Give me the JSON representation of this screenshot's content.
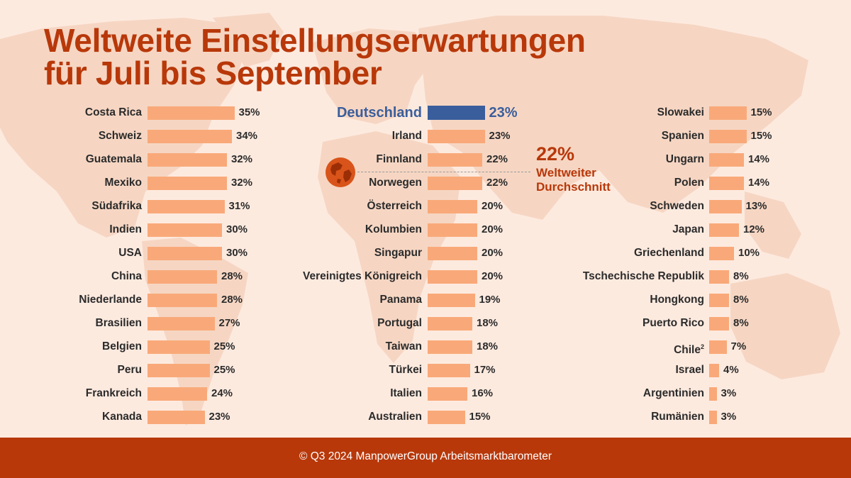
{
  "title_line1": "Weltweite Einstellungserwartungen",
  "title_line2": "für Juli bis September",
  "average": {
    "value_label": "22%",
    "value": 22,
    "label_line1": "Weltweiter",
    "label_line2": "Durchschnitt"
  },
  "footer": "© Q3 2024 ManpowerGroup Arbeitsmarktbarometer",
  "colors": {
    "bar": "#f9a979",
    "highlight": "#3a5e9c",
    "accent": "#b8380a",
    "background": "#fdeadf"
  },
  "icons": {
    "average_marker": "globe-icon"
  },
  "chart_data": {
    "type": "bar",
    "orientation": "horizontal",
    "unit": "%",
    "highlight": {
      "category": "Deutschland",
      "value": 23,
      "label": "23%"
    },
    "columns": [
      {
        "categories": [
          "Costa Rica",
          "Schweiz",
          "Guatemala",
          "Mexiko",
          "Südafrika",
          "Indien",
          "USA",
          "China",
          "Niederlande",
          "Brasilien",
          "Belgien",
          "Peru",
          "Frankreich",
          "Kanada"
        ],
        "values": [
          35,
          34,
          32,
          32,
          31,
          30,
          30,
          28,
          28,
          27,
          25,
          25,
          24,
          23
        ],
        "value_labels": [
          "35%",
          "34%",
          "32%",
          "32%",
          "31%",
          "30%",
          "30%",
          "28%",
          "28%",
          "27%",
          "25%",
          "25%",
          "24%",
          "23%"
        ]
      },
      {
        "categories": [
          "Irland",
          "Finnland",
          "Norwegen",
          "Österreich",
          "Kolumbien",
          "Singapur",
          "Vereinigtes Königreich",
          "Panama",
          "Portugal",
          "Taiwan",
          "Türkei",
          "Italien",
          "Australien"
        ],
        "values": [
          23,
          22,
          22,
          20,
          20,
          20,
          20,
          19,
          18,
          18,
          17,
          16,
          15
        ],
        "value_labels": [
          "23%",
          "22%",
          "22%",
          "20%",
          "20%",
          "20%",
          "20%",
          "19%",
          "18%",
          "18%",
          "17%",
          "16%",
          "15%"
        ]
      },
      {
        "categories": [
          "Slowakei",
          "Spanien",
          "Ungarn",
          "Polen",
          "Schweden",
          "Japan",
          "Griechenland",
          "Tschechische Republik",
          "Hongkong",
          "Puerto Rico",
          "Chile",
          "Israel",
          "Argentinien",
          "Rumänien"
        ],
        "values": [
          15,
          15,
          14,
          14,
          13,
          12,
          10,
          8,
          8,
          8,
          7,
          4,
          3,
          3
        ],
        "value_labels": [
          "15%",
          "15%",
          "14%",
          "14%",
          "13%",
          "12%",
          "10%",
          "8%",
          "8%",
          "8%",
          "7%",
          "4%",
          "3%",
          "3%"
        ],
        "footnotes": {
          "Chile": "2"
        }
      }
    ]
  }
}
